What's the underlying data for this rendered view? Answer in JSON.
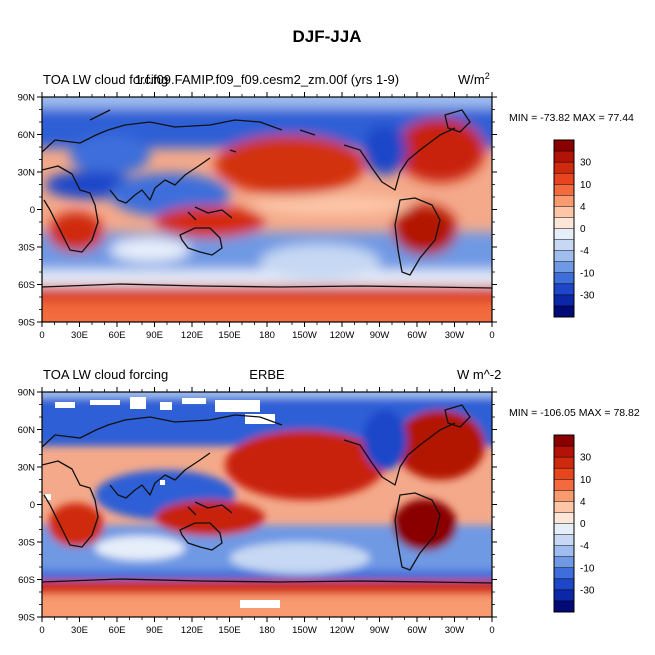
{
  "figure": {
    "title": "DJF-JJA"
  },
  "panels": [
    {
      "id": "top",
      "left_title": "TOA LW cloud forcing",
      "center_title": "1.f.f09.FAMIP.f09_f09.cesm2_zm.00f (yrs 1-9)",
      "units": "W/m",
      "units_sup": "2",
      "min_max_text": "MIN = -73.82 MAX =  77.44"
    },
    {
      "id": "bottom",
      "left_title": "TOA LW cloud forcing",
      "center_title": "ERBE",
      "units": "W m^-2",
      "units_sup": "",
      "min_max_text": "MIN = -106.05 MAX =  78.82"
    }
  ],
  "axes": {
    "lat_labels": [
      "90N",
      "60N",
      "30N",
      "0",
      "30S",
      "60S",
      "90S"
    ],
    "lon_labels": [
      "0",
      "30E",
      "60E",
      "90E",
      "120E",
      "150E",
      "180",
      "150W",
      "120W",
      "90W",
      "60W",
      "30W",
      "0"
    ]
  },
  "colorbar": {
    "levels_labeled": [
      "30",
      "10",
      "4",
      "0",
      "-4",
      "-10",
      "-30"
    ],
    "colors": [
      "#8a0000",
      "#b31206",
      "#cf2a0e",
      "#e8451f",
      "#f26a3d",
      "#f99a6f",
      "#fcc6a7",
      "#fde6d8",
      "#e6eefa",
      "#c6d8f3",
      "#9fbdee",
      "#6f99e4",
      "#3d6edb",
      "#1d46c9",
      "#0c26a8",
      "#020a78"
    ]
  },
  "chart_data": {
    "type": "heatmap",
    "projection": "cylindrical-equidistant",
    "variable": "TOA LW cloud forcing",
    "season_difference": "DJF-JJA",
    "panels": [
      {
        "name": "1.f.f09.FAMIP.f09_f09.cesm2_zm.00f (yrs 1-9)",
        "units": "W/m^2",
        "min": -73.82,
        "max": 77.44
      },
      {
        "name": "ERBE",
        "units": "W m^-2",
        "min": -106.05,
        "max": 78.82
      }
    ],
    "xrange": [
      0,
      360
    ],
    "yrange": [
      -90,
      90
    ],
    "contour_levels": [
      -30,
      -20,
      -15,
      -10,
      -7,
      -4,
      -2,
      0,
      2,
      4,
      7,
      10,
      15,
      20,
      30
    ]
  }
}
